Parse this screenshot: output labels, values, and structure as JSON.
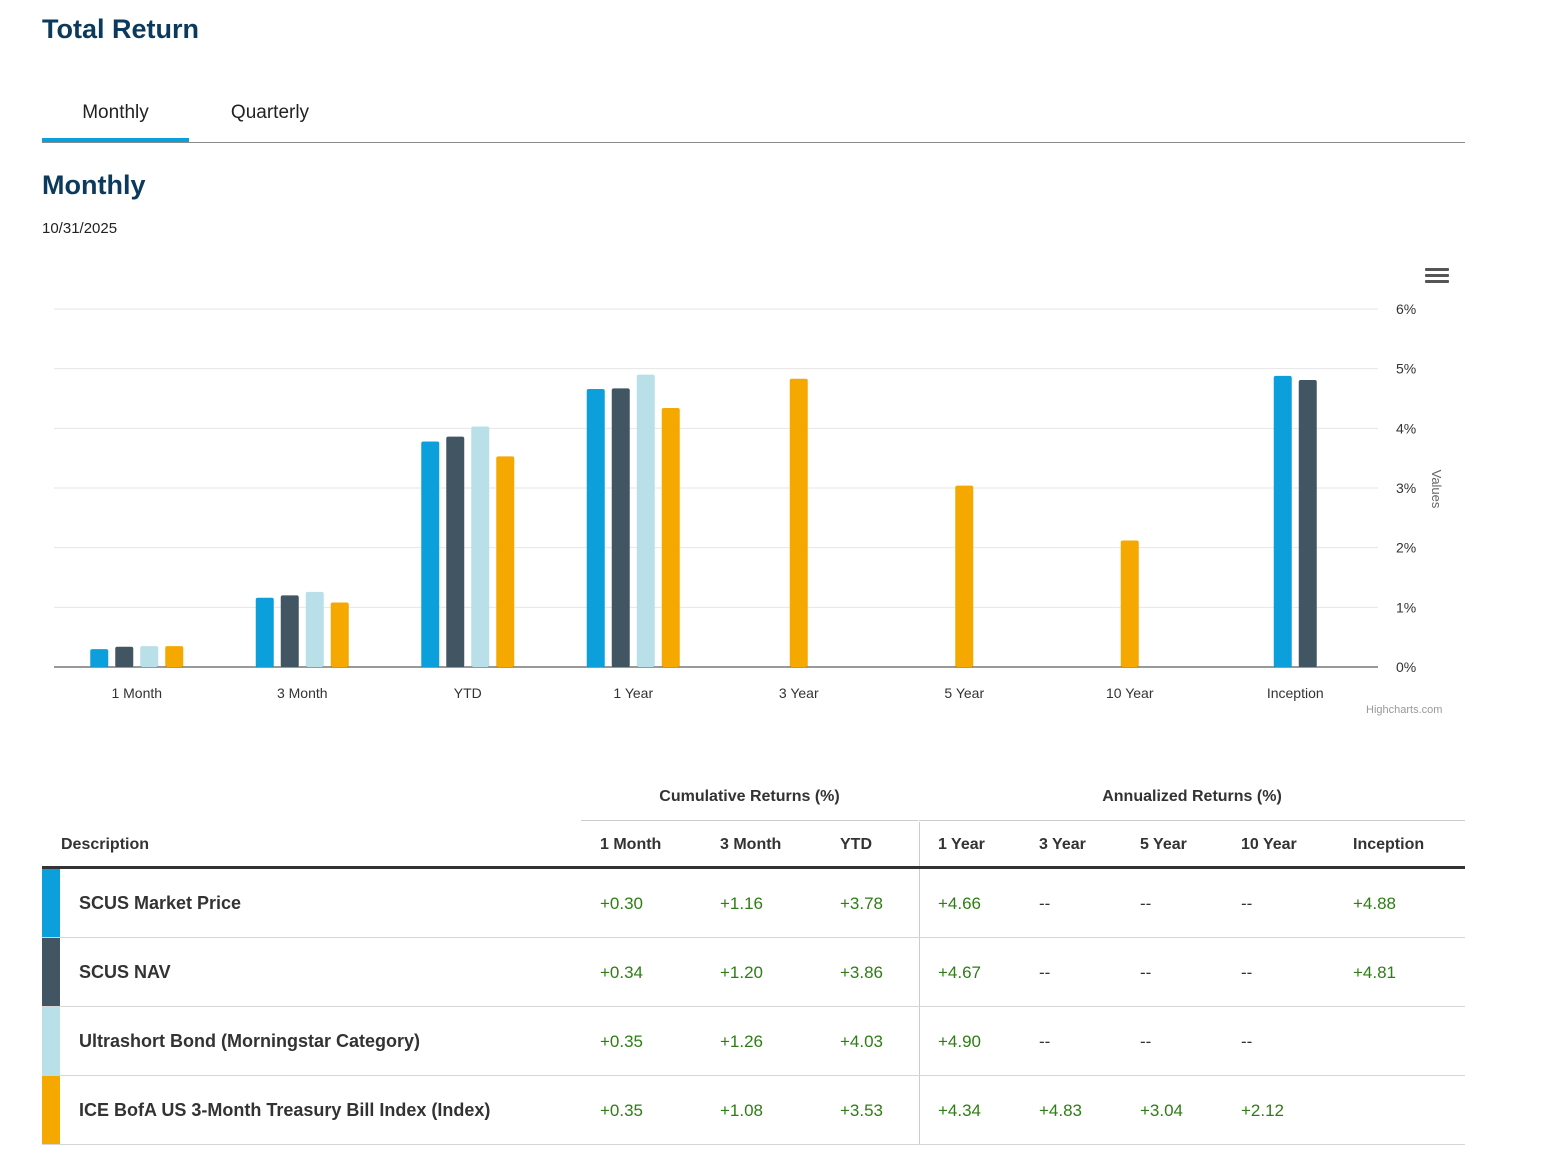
{
  "page_title": "Total Return",
  "tabs": [
    {
      "label": "Monthly",
      "active": true
    },
    {
      "label": "Quarterly",
      "active": false
    }
  ],
  "section_title": "Monthly",
  "as_of_date": "10/31/2025",
  "chart_credit": "Highcharts.com",
  "colors": {
    "accent": "#0ba0dc",
    "title": "#0b3a5c",
    "positive": "#2e7d15"
  },
  "chart_data": {
    "type": "bar",
    "categories": [
      "1 Month",
      "3 Month",
      "YTD",
      "1 Year",
      "3 Year",
      "5 Year",
      "10 Year",
      "Inception"
    ],
    "ylabel": "Values",
    "ylim": [
      0,
      6
    ],
    "yticks": [
      0,
      1,
      2,
      3,
      4,
      5,
      6
    ],
    "ytick_suffix": "%",
    "grid": true,
    "yaxis_side": "right",
    "series": [
      {
        "color": "#0ba0dc",
        "values": [
          0.3,
          1.16,
          3.78,
          4.66,
          null,
          null,
          null,
          4.88
        ]
      },
      {
        "color": "#425563",
        "values": [
          0.34,
          1.2,
          3.86,
          4.67,
          null,
          null,
          null,
          4.81
        ]
      },
      {
        "color": "#b9dfe8",
        "values": [
          0.35,
          1.26,
          4.03,
          4.9,
          null,
          null,
          null,
          null
        ]
      },
      {
        "color": "#f5a800",
        "values": [
          0.35,
          1.08,
          3.53,
          4.34,
          4.83,
          3.04,
          2.12,
          null
        ]
      }
    ]
  },
  "table": {
    "group_headers": {
      "cumulative": "Cumulative Returns (%)",
      "annualized": "Annualized Returns (%)"
    },
    "columns": [
      "Description",
      "1 Month",
      "3 Month",
      "YTD",
      "1 Year",
      "3 Year",
      "5 Year",
      "10 Year",
      "Inception"
    ],
    "rows": [
      {
        "description": "SCUS Market Price",
        "color": "#0ba0dc",
        "values": [
          "+0.30",
          "+1.16",
          "+3.78",
          "+4.66",
          "--",
          "--",
          "--",
          "+4.88"
        ]
      },
      {
        "description": "SCUS NAV",
        "color": "#425563",
        "values": [
          "+0.34",
          "+1.20",
          "+3.86",
          "+4.67",
          "--",
          "--",
          "--",
          "+4.81"
        ]
      },
      {
        "description": "Ultrashort Bond (Morningstar Category)",
        "color": "#b9dfe8",
        "values": [
          "+0.35",
          "+1.26",
          "+4.03",
          "+4.90",
          "--",
          "--",
          "--",
          ""
        ]
      },
      {
        "description": "ICE BofA US 3-Month Treasury Bill Index (Index)",
        "color": "#f5a800",
        "values": [
          "+0.35",
          "+1.08",
          "+3.53",
          "+4.34",
          "+4.83",
          "+3.04",
          "+2.12",
          ""
        ]
      }
    ]
  }
}
